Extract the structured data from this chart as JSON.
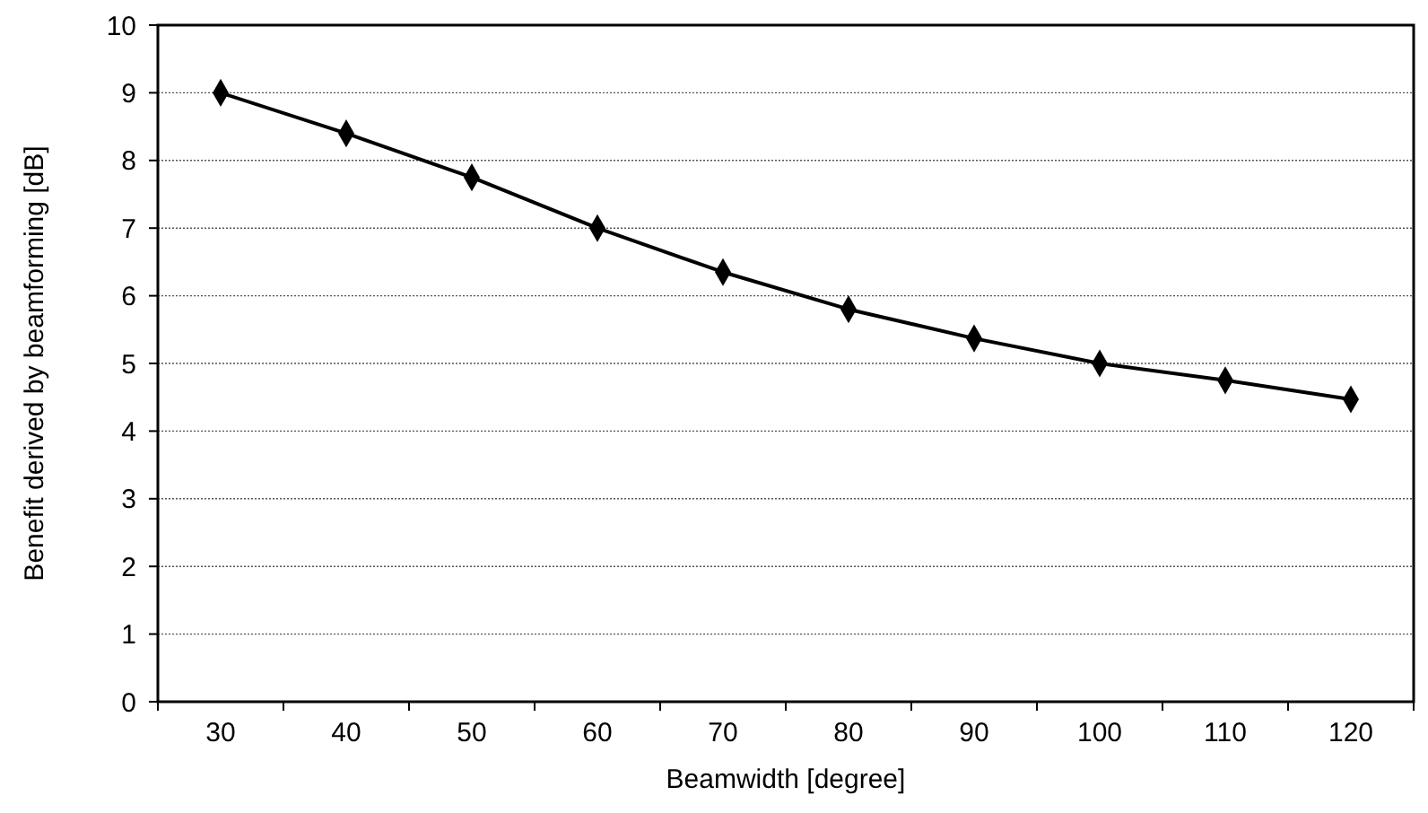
{
  "chart_data": {
    "type": "line",
    "xlabel": "Beamwidth [degree]",
    "ylabel": "Benefit derived by beamforming [dB]",
    "categories": [
      "30",
      "40",
      "50",
      "60",
      "70",
      "80",
      "90",
      "100",
      "110",
      "120"
    ],
    "series": [
      {
        "color": "#000000",
        "values": [
          9.0,
          8.4,
          7.75,
          7.0,
          6.35,
          5.8,
          5.37,
          5.0,
          4.75,
          4.47
        ]
      }
    ],
    "ylim": [
      0,
      10
    ],
    "yticks": [
      0,
      1,
      2,
      3,
      4,
      5,
      6,
      7,
      8,
      9,
      10
    ],
    "grid": "y",
    "marker": "diamond",
    "line_style": "solid"
  }
}
